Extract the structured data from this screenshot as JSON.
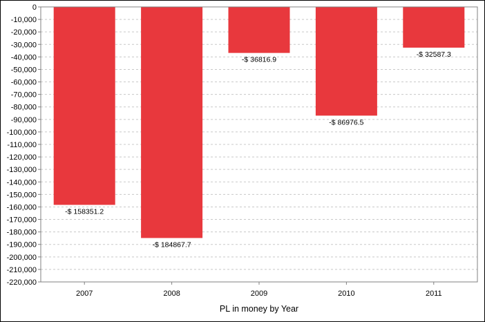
{
  "chart_data": {
    "type": "bar",
    "categories": [
      "2007",
      "2008",
      "2009",
      "2010",
      "2011"
    ],
    "values": [
      -158351.2,
      -184867.7,
      -36816.9,
      -86976.5,
      -32587.3
    ],
    "data_labels": [
      "-$ 158351.2",
      "-$ 184867.7",
      "-$ 36816.9",
      "-$ 86976.5",
      "-$ 32587.3"
    ],
    "title": "",
    "xlabel": "PL in money by Year",
    "ylabel": "",
    "ylim": [
      -220000,
      0
    ],
    "yticks": [
      0,
      -10000,
      -20000,
      -30000,
      -40000,
      -50000,
      -60000,
      -70000,
      -80000,
      -90000,
      -100000,
      -110000,
      -120000,
      -130000,
      -140000,
      -150000,
      -160000,
      -170000,
      -180000,
      -190000,
      -200000,
      -210000,
      -220000
    ],
    "ytick_labels": [
      "0",
      "-10,000",
      "-20,000",
      "-30,000",
      "-40,000",
      "-50,000",
      "-60,000",
      "-70,000",
      "-80,000",
      "-90,000",
      "-100,000",
      "-110,000",
      "-120,000",
      "-130,000",
      "-140,000",
      "-150,000",
      "-160,000",
      "-170,000",
      "-180,000",
      "-190,000",
      "-200,000",
      "-210,000",
      "-220,000"
    ],
    "grid": true,
    "bar_color": "#e8383d"
  }
}
